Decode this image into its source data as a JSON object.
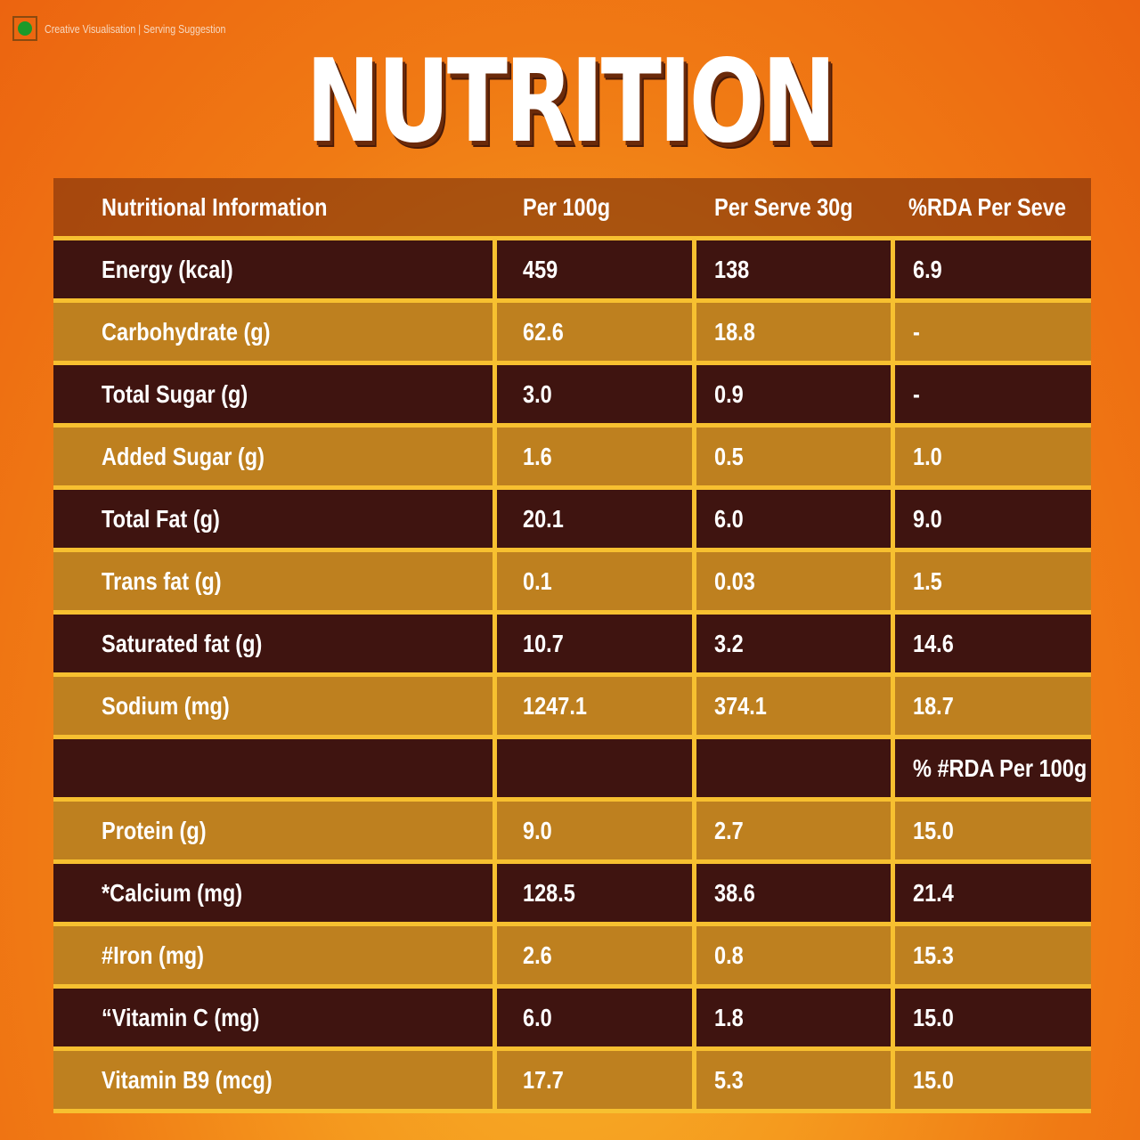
{
  "badge": {
    "icon": "veg-mark-icon",
    "color": "#1a9a2a",
    "note": "Creative Visualisation | Serving Suggestion"
  },
  "title": "NUTRITION",
  "colors": {
    "dark_row": "#3f1410",
    "grid_line": "#f7c030",
    "background": "#f07a14"
  },
  "table": {
    "headers": [
      "Nutritional Information",
      "Per 100g",
      "Per Serve 30g",
      "%RDA Per Seve"
    ],
    "rows": [
      [
        "Energy (kcal)",
        "459",
        "138",
        "6.9"
      ],
      [
        "Carbohydrate (g)",
        "62.6",
        "18.8",
        "-"
      ],
      [
        "Total Sugar (g)",
        "3.0",
        "0.9",
        "-"
      ],
      [
        "Added Sugar (g)",
        "1.6",
        "0.5",
        "1.0"
      ],
      [
        "Total Fat (g)",
        "20.1",
        "6.0",
        "9.0"
      ],
      [
        "Trans fat (g)",
        "0.1",
        "0.03",
        "1.5"
      ],
      [
        "Saturated fat (g)",
        "10.7",
        "3.2",
        "14.6"
      ],
      [
        "Sodium (mg)",
        "1247.1",
        "374.1",
        "18.7"
      ],
      [
        "",
        "",
        "",
        "% #RDA Per 100g"
      ],
      [
        "Protein (g)",
        "9.0",
        "2.7",
        "15.0"
      ],
      [
        "*Calcium (mg)",
        "128.5",
        "38.6",
        "21.4"
      ],
      [
        "#Iron (mg)",
        "2.6",
        "0.8",
        "15.3"
      ],
      [
        "“Vitamin C (mg)",
        "6.0",
        "1.8",
        "15.0"
      ],
      [
        "Vitamin B9 (mcg)",
        "17.7",
        "5.3",
        "15.0"
      ]
    ]
  }
}
